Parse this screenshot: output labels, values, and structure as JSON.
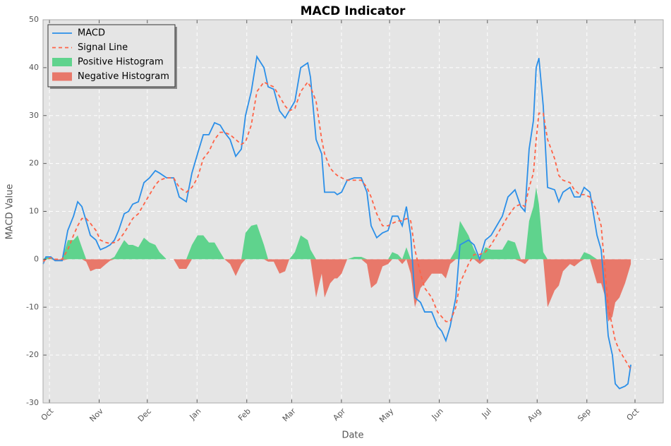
{
  "chart_data": {
    "type": "line",
    "title": "MACD Indicator",
    "xlabel": "Date",
    "ylabel": "MACD Value",
    "xlim": [
      -4,
      382.6
    ],
    "ylim": [
      -30,
      50
    ],
    "xticks": [
      {
        "value": 0,
        "label": "Oct"
      },
      {
        "value": 31,
        "label": "Nov"
      },
      {
        "value": 61,
        "label": "Dec"
      },
      {
        "value": 92,
        "label": "Jan"
      },
      {
        "value": 123,
        "label": "Feb"
      },
      {
        "value": 151,
        "label": "Mar"
      },
      {
        "value": 182,
        "label": "Apr"
      },
      {
        "value": 212,
        "label": "May"
      },
      {
        "value": 243,
        "label": "Jun"
      },
      {
        "value": 273,
        "label": "Jul"
      },
      {
        "value": 304,
        "label": "Aug"
      },
      {
        "value": 335,
        "label": "Sep"
      },
      {
        "value": 365,
        "label": "Oct"
      }
    ],
    "yticks": [
      -30,
      -20,
      -10,
      0,
      10,
      20,
      30,
      40,
      50
    ],
    "grid": true,
    "legend": "upper left",
    "x": [
      -4,
      -2.2,
      0.9,
      3.5,
      7.9,
      11.4,
      15,
      17.6,
      20.2,
      22.9,
      25.5,
      29,
      31.7,
      35.2,
      37.8,
      40.5,
      43.1,
      46.6,
      49.3,
      51.9,
      55.4,
      58.9,
      62.4,
      66,
      68.6,
      73,
      77.4,
      80.9,
      85.3,
      88.8,
      92.3,
      95.9,
      99.4,
      102.9,
      106.4,
      109.1,
      112.6,
      116.1,
      119.6,
      122.2,
      125.8,
      129.3,
      133.7,
      136.3,
      139.8,
      143.4,
      146.9,
      149.5,
      153,
      156.6,
      161,
      162.7,
      166.2,
      169.7,
      171.5,
      175,
      177.7,
      179.4,
      182.1,
      185.6,
      190,
      194.4,
      197.9,
      200.5,
      204,
      207.6,
      211.1,
      213.7,
      217.2,
      219.9,
      222.5,
      225.2,
      227.8,
      231.3,
      233.9,
      238.3,
      241.9,
      244.5,
      247.1,
      249.8,
      253.3,
      255.9,
      261.2,
      264.7,
      268.2,
      271.7,
      275.3,
      278.8,
      282.3,
      285.8,
      290.2,
      293.8,
      296.4,
      299,
      301.7,
      303.4,
      305.1,
      307.8,
      310.5,
      314.9,
      317.5,
      320.1,
      324.5,
      327.2,
      330.7,
      333.3,
      336.9,
      341.3,
      343.9,
      346.5,
      348.3,
      350.9,
      352.7,
      355.3,
      358.8,
      360.6,
      362.4
    ],
    "series": [
      {
        "name": "MACD",
        "color": "#2b8fe8",
        "style": "solid",
        "kind": "line",
        "values": [
          -1,
          0.5,
          0.5,
          -0.3,
          -0.3,
          6,
          9,
          12,
          11,
          8,
          5,
          4,
          2,
          2.5,
          3,
          4,
          6,
          9.5,
          10,
          11.5,
          12,
          16,
          17,
          18.5,
          18,
          17,
          17,
          13,
          12,
          18,
          22,
          26,
          26,
          28.5,
          28,
          26.5,
          25,
          21.5,
          23,
          30,
          35,
          42.3,
          40,
          36,
          35.5,
          31,
          29.5,
          31,
          33,
          40,
          41,
          38,
          25,
          22,
          14,
          14,
          14,
          13.5,
          14,
          16.5,
          17,
          17,
          14,
          7,
          4.5,
          5.5,
          6,
          9,
          9,
          7,
          11,
          5,
          -8,
          -9,
          -11,
          -11,
          -14,
          -15,
          -17,
          -14,
          -8,
          3,
          4,
          3,
          0,
          4,
          5,
          7,
          9,
          13,
          14.5,
          11,
          10,
          23,
          29,
          40,
          42,
          32,
          15,
          14.5,
          12,
          14,
          15,
          13,
          13,
          15,
          14,
          5,
          2,
          -8,
          -16,
          -20,
          -26,
          -27,
          -26.5,
          -26,
          -22
        ]
      },
      {
        "name": "Signal Line",
        "color": "#ff6347",
        "style": "dashed",
        "kind": "line",
        "values": [
          -0.5,
          0,
          0.3,
          0,
          0,
          2,
          5,
          7,
          8.5,
          8.5,
          7.5,
          6,
          4,
          3.5,
          3.3,
          3.5,
          4,
          5.5,
          7,
          8.5,
          9.5,
          11.5,
          13.5,
          15.5,
          16.5,
          17,
          17,
          15,
          14,
          15,
          17,
          21,
          22.5,
          25,
          26.5,
          26.5,
          26,
          25,
          24,
          24.5,
          28,
          35,
          37,
          36.5,
          36,
          34,
          32,
          31,
          31.5,
          35,
          37,
          36,
          33,
          25,
          22,
          19,
          18,
          17.5,
          17,
          16.5,
          16.5,
          16.5,
          15,
          13,
          9.5,
          7,
          7,
          7.5,
          8,
          8,
          8.5,
          8,
          2,
          -3,
          -6,
          -8,
          -11,
          -12,
          -13,
          -13,
          -10,
          -5,
          -1,
          1,
          1,
          1.5,
          3,
          5,
          7,
          9,
          11,
          11.5,
          11,
          15,
          18,
          25,
          30.5,
          30.5,
          25,
          21,
          17.5,
          16.5,
          16,
          14.5,
          13.5,
          13.5,
          13,
          10,
          7,
          -3,
          -10,
          -14,
          -17,
          -19,
          -21,
          -22,
          -23
        ]
      },
      {
        "name": "Positive Histogram",
        "color": "#5fd38d",
        "kind": "area",
        "values": [
          0,
          0.5,
          0.2,
          0,
          0,
          4,
          4,
          5,
          2.5,
          0,
          0,
          0,
          0,
          0,
          0,
          0.5,
          2,
          4,
          3,
          3,
          2.5,
          4.5,
          3.5,
          3,
          1.5,
          0,
          0,
          0,
          0,
          3,
          5,
          5,
          3.5,
          3.5,
          1.5,
          0,
          0,
          0,
          0,
          5.5,
          7,
          7.3,
          3,
          0,
          0,
          0,
          0,
          0,
          1.5,
          5,
          4,
          2,
          0,
          0,
          0,
          0,
          0,
          0,
          0,
          0,
          0.5,
          0.5,
          0,
          0,
          0,
          0,
          0,
          1.5,
          1,
          0,
          2.5,
          0,
          0,
          0,
          0,
          0,
          0,
          0,
          0,
          0,
          2,
          8,
          5,
          2,
          0,
          2.5,
          2,
          2,
          2,
          4,
          3.5,
          0,
          0,
          8,
          11,
          15,
          11.5,
          1.5,
          0,
          0,
          0,
          0,
          0,
          0,
          0,
          1.5,
          1,
          0,
          0,
          0,
          0,
          0,
          0,
          0,
          0,
          0,
          0
        ]
      },
      {
        "name": "Negative Histogram",
        "color": "#e8786a",
        "kind": "area",
        "values": [
          -0.5,
          0,
          0,
          -0.3,
          -0.3,
          0,
          0,
          0,
          0,
          -0.5,
          -2.5,
          -2,
          -2,
          -1,
          -0.3,
          0,
          0,
          0,
          0,
          0,
          0,
          0,
          0,
          0,
          0,
          0,
          0,
          -2,
          -2,
          0,
          0,
          0,
          0,
          0,
          0,
          0,
          -1,
          -3.5,
          -1,
          0,
          0,
          0,
          0,
          -0.5,
          -0.5,
          -3,
          -2.5,
          0,
          0,
          0,
          0,
          0,
          -8,
          -3,
          -8,
          -5,
          -4,
          -4,
          -3,
          0,
          0,
          0,
          -1,
          -6,
          -5,
          -1.5,
          -1,
          0,
          0,
          -1,
          0,
          -3,
          -10,
          -6,
          -5,
          -3,
          -3,
          -3,
          -4,
          -1,
          0,
          0,
          0,
          0,
          -1,
          0,
          0,
          0,
          0,
          0,
          0,
          -0.5,
          -1,
          0,
          0,
          0,
          0,
          0,
          -10,
          -6.5,
          -5.5,
          -2.5,
          -1,
          -1.5,
          -0.5,
          0,
          0,
          -5,
          -5,
          -8,
          -13,
          -12,
          -9,
          -8,
          -5,
          -3,
          -1
        ]
      }
    ]
  }
}
